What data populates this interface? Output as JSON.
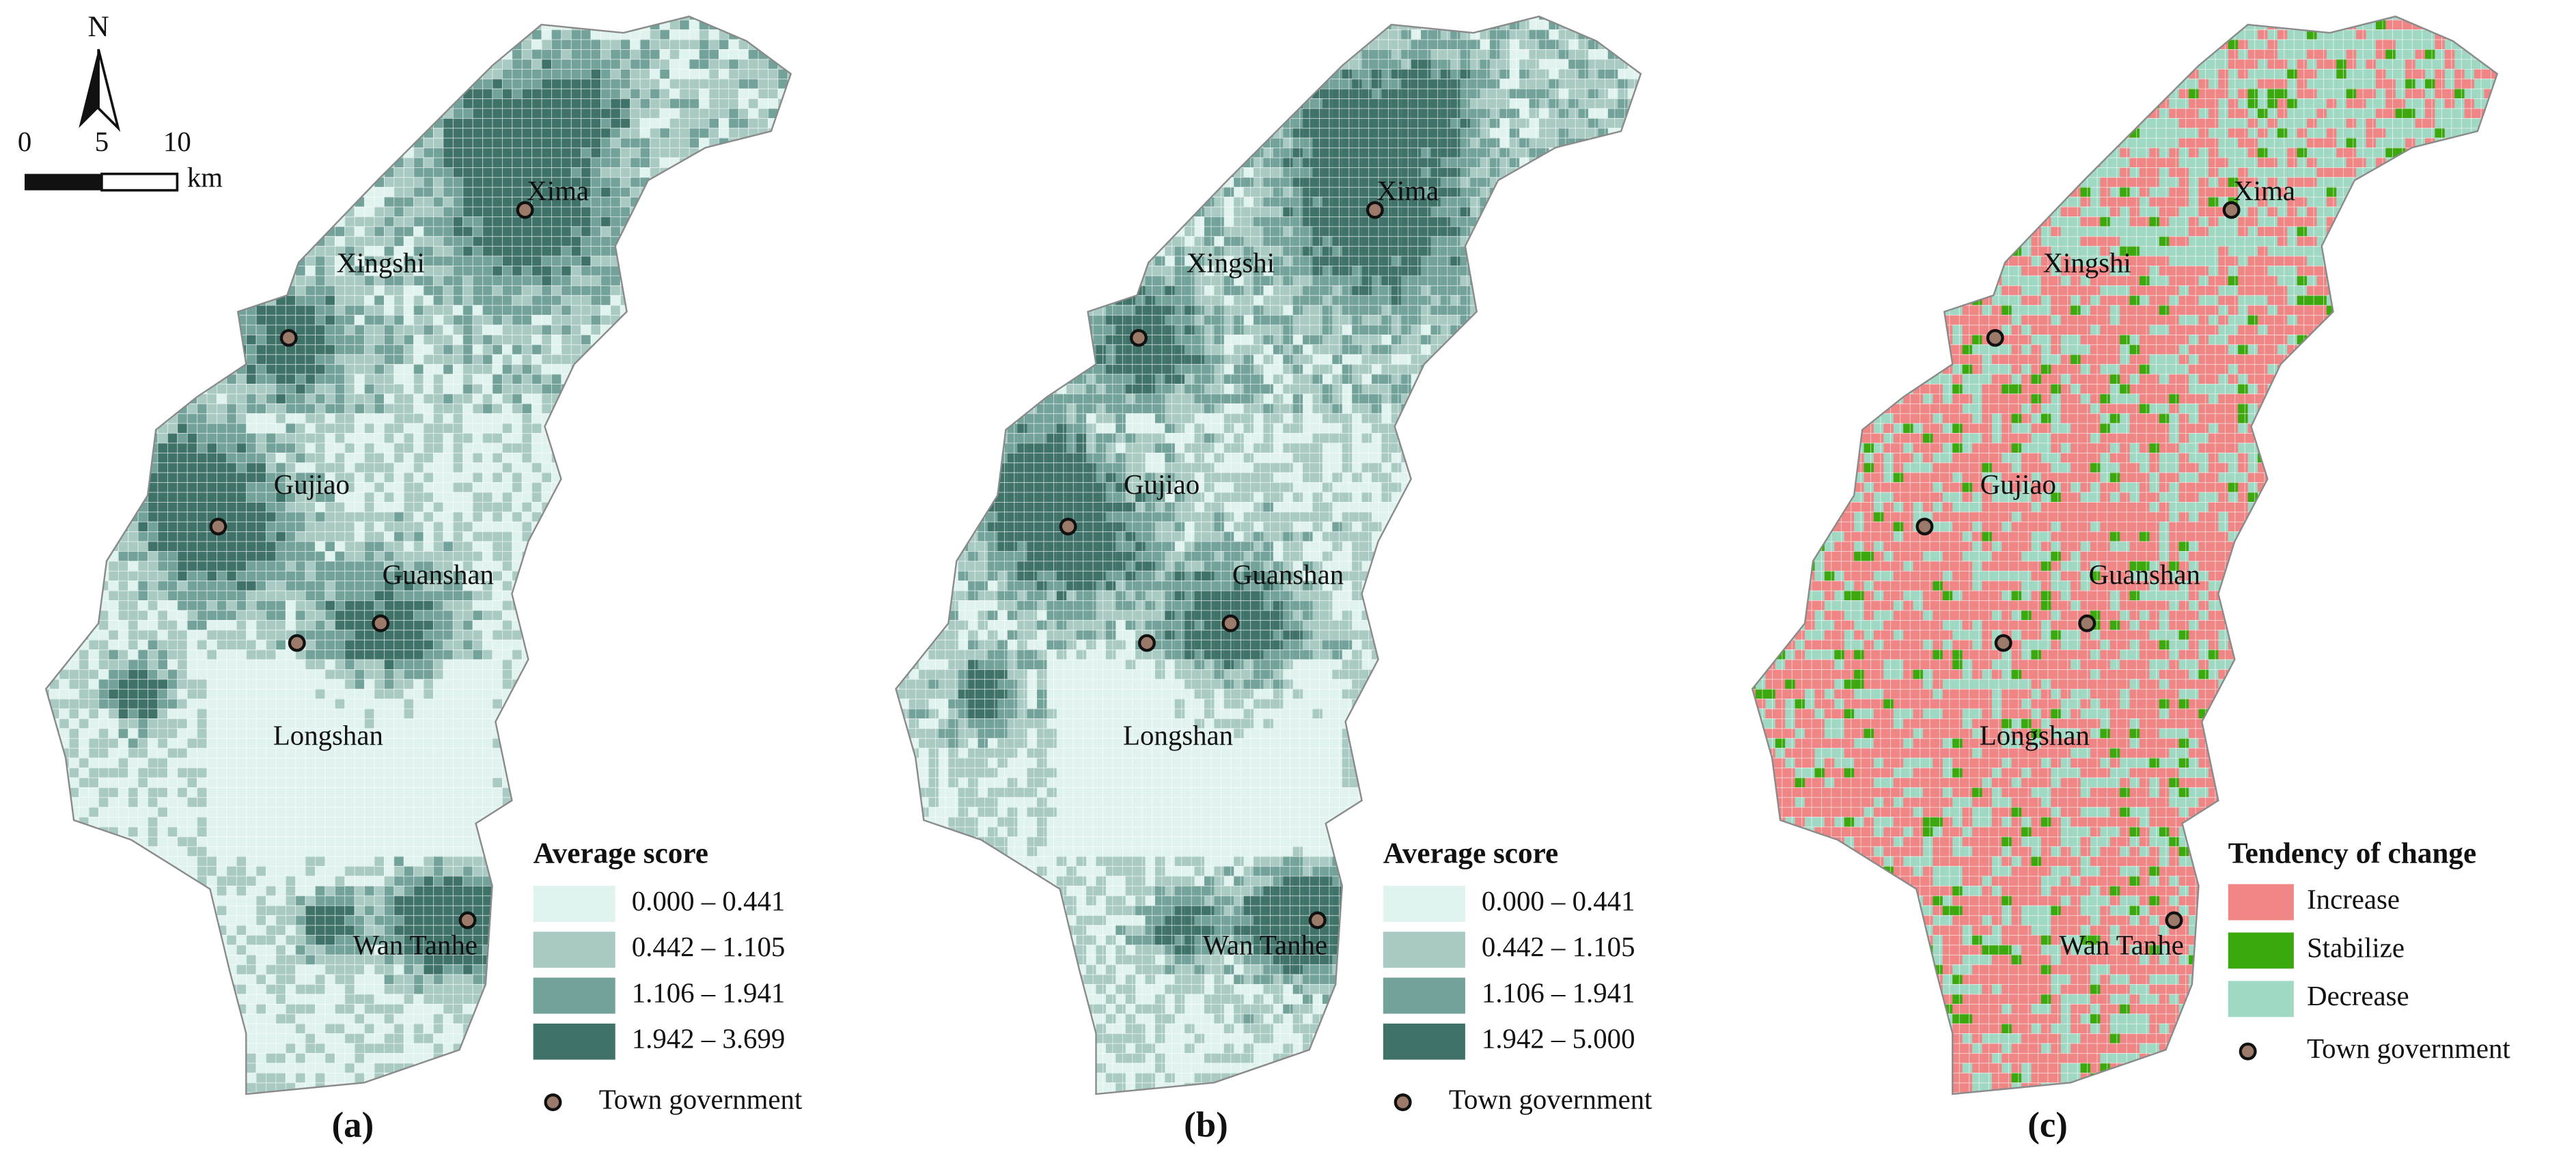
{
  "scale_bar": {
    "north": "N",
    "ticks": [
      "0",
      "5",
      "10"
    ],
    "unit": "km"
  },
  "panels": [
    {
      "label": "(a)",
      "towns": [
        "Xima",
        "Xingshi",
        "Gujiao",
        "Guanshan",
        "Longshan",
        "Wan Tanhe"
      ],
      "legend": {
        "title": "Average score",
        "items": [
          "0.000 – 0.441",
          "0.442 – 1.105",
          "1.106 – 1.941",
          "1.942 – 3.699"
        ],
        "town_government": "Town government"
      }
    },
    {
      "label": "(b)",
      "towns": [
        "Xima",
        "Xingshi",
        "Gujiao",
        "Guanshan",
        "Longshan",
        "Wan Tanhe"
      ],
      "legend": {
        "title": "Average score",
        "items": [
          "0.000 – 0.441",
          "0.442 – 1.105",
          "1.106 – 1.941",
          "1.942 – 5.000"
        ],
        "town_government": "Town government"
      }
    },
    {
      "label": "(c)",
      "towns": [
        "Xima",
        "Xingshi",
        "Gujiao",
        "Guanshan",
        "Longshan",
        "Wan Tanhe"
      ],
      "legend": {
        "title": "Tendency of change",
        "items": [
          "Increase",
          "Stabilize",
          "Decrease"
        ],
        "town_government": "Town government"
      }
    }
  ]
}
